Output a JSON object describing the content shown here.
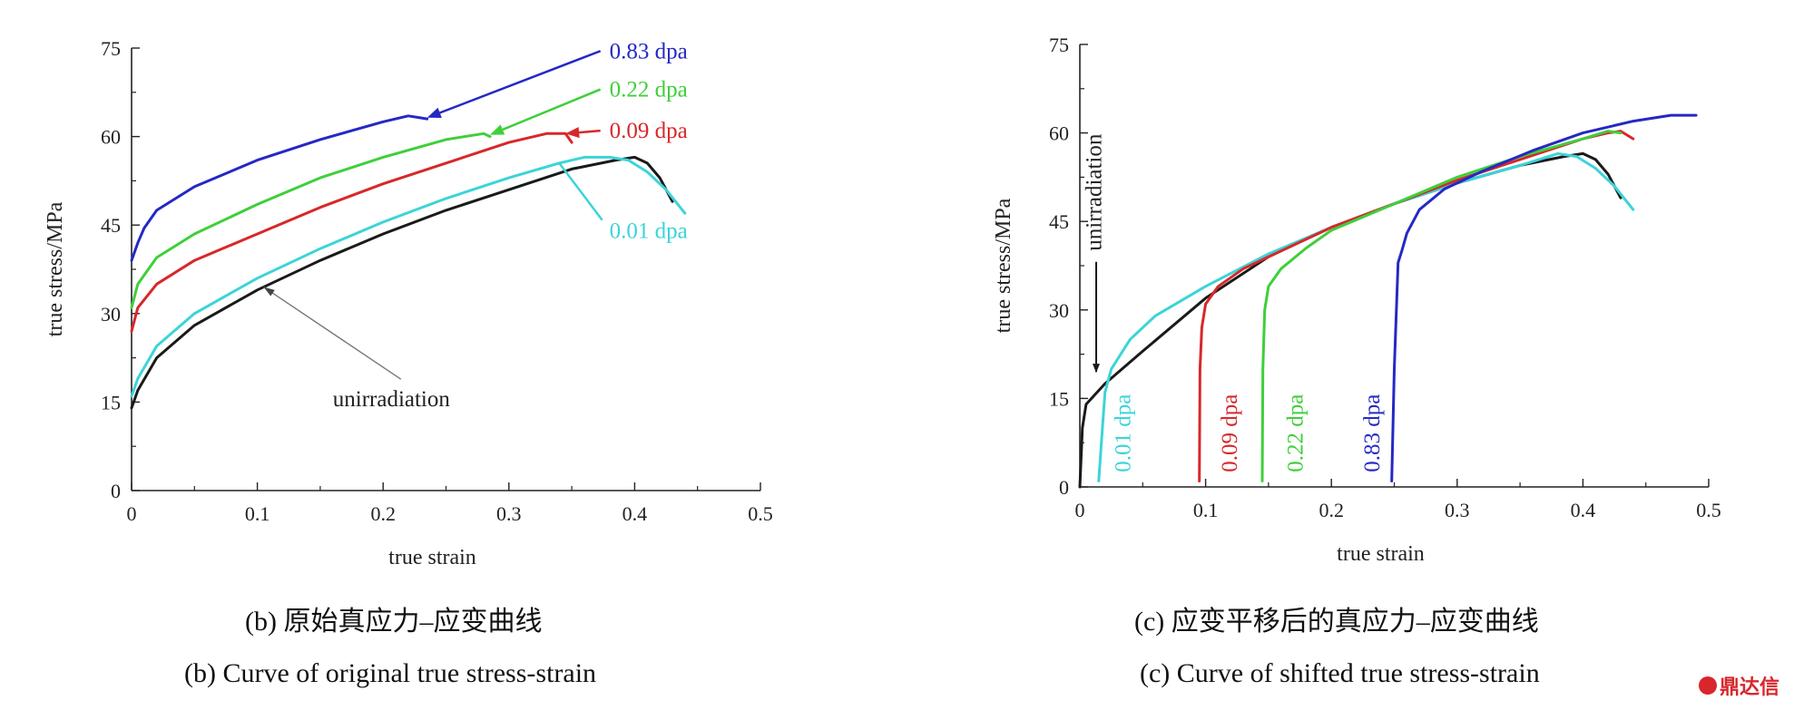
{
  "chart_data": [
    {
      "type": "line",
      "panel": "b",
      "title": "",
      "xlabel": "true strain",
      "ylabel": "true stress/MPa",
      "xlim": [
        0,
        0.5
      ],
      "ylim": [
        0,
        75
      ],
      "xticks": [
        "0",
        "0.1",
        "0.2",
        "0.3",
        "0.4",
        "0.5"
      ],
      "yticks": [
        "0",
        "15",
        "30",
        "45",
        "60",
        "75"
      ],
      "grid": false,
      "legend": "none",
      "series": [
        {
          "name": "unirradiation",
          "color": "#1a1a1a",
          "x": [
            0,
            0.005,
            0.02,
            0.05,
            0.1,
            0.15,
            0.2,
            0.25,
            0.3,
            0.35,
            0.385,
            0.4,
            0.41,
            0.42,
            0.43
          ],
          "y": [
            14,
            17,
            22.5,
            28,
            34,
            39,
            43.5,
            47.5,
            51,
            54.5,
            56,
            56.5,
            55.5,
            53,
            49
          ]
        },
        {
          "name": "0.01 dpa",
          "color": "#3cd4d8",
          "x": [
            0,
            0.005,
            0.02,
            0.05,
            0.1,
            0.15,
            0.2,
            0.25,
            0.3,
            0.34,
            0.36,
            0.38,
            0.395,
            0.41,
            0.425,
            0.44
          ],
          "y": [
            16,
            19,
            24.5,
            30,
            36,
            41,
            45.5,
            49.5,
            53,
            55.5,
            56.5,
            56.5,
            56,
            54,
            51,
            47
          ]
        },
        {
          "name": "0.09 dpa",
          "color": "#d7282a",
          "x": [
            0,
            0.005,
            0.02,
            0.05,
            0.1,
            0.15,
            0.2,
            0.25,
            0.3,
            0.33,
            0.345,
            0.35
          ],
          "y": [
            27,
            31,
            35,
            39,
            43.5,
            48,
            52,
            55.5,
            59,
            60.5,
            60.5,
            59
          ]
        },
        {
          "name": "0.22 dpa",
          "color": "#3fcf3a",
          "x": [
            0,
            0.005,
            0.02,
            0.05,
            0.1,
            0.15,
            0.2,
            0.25,
            0.28,
            0.285
          ],
          "y": [
            31,
            35,
            39.5,
            43.5,
            48.5,
            53,
            56.5,
            59.5,
            60.5,
            60
          ]
        },
        {
          "name": "0.83 dpa",
          "color": "#2528c4",
          "x": [
            0,
            0.005,
            0.01,
            0.02,
            0.05,
            0.1,
            0.15,
            0.2,
            0.22,
            0.235
          ],
          "y": [
            39,
            42,
            44.5,
            47.5,
            51.5,
            56,
            59.5,
            62.5,
            63.5,
            63
          ]
        }
      ],
      "annotations": [
        {
          "text": "0.83 dpa",
          "series": "0.83 dpa",
          "label_x": 0.38,
          "label_y": 74.5,
          "point_x": 0.235,
          "point_y": 63.2
        },
        {
          "text": "0.22 dpa",
          "series": "0.22 dpa",
          "label_x": 0.38,
          "label_y": 68,
          "point_x": 0.285,
          "point_y": 60.3
        },
        {
          "text": "0.09 dpa",
          "series": "0.09 dpa",
          "label_x": 0.38,
          "label_y": 61,
          "point_x": 0.345,
          "point_y": 60.5
        },
        {
          "text": "0.01 dpa",
          "series": "0.01 dpa",
          "label_x": 0.38,
          "label_y": 44,
          "point_x": 0.34,
          "point_y": 55.5
        },
        {
          "text": "unirradiation",
          "series": "unirradiation",
          "label_x": 0.16,
          "label_y": 15.5,
          "point_x": 0.105,
          "point_y": 34.5
        }
      ]
    },
    {
      "type": "line",
      "panel": "c",
      "title": "",
      "xlabel": "true strain",
      "ylabel": "true stress/MPa",
      "xlim": [
        0,
        0.5
      ],
      "ylim": [
        0,
        75
      ],
      "xticks": [
        "0",
        "0.1",
        "0.2",
        "0.3",
        "0.4",
        "0.5"
      ],
      "yticks": [
        "0",
        "15",
        "30",
        "45",
        "60",
        "75"
      ],
      "grid": false,
      "legend": "none",
      "series": [
        {
          "name": "unirradiation",
          "color": "#1a1a1a",
          "x": [
            0,
            0.002,
            0.005,
            0.02,
            0.05,
            0.1,
            0.15,
            0.2,
            0.25,
            0.3,
            0.35,
            0.385,
            0.4,
            0.41,
            0.42,
            0.43
          ],
          "y": [
            0,
            10,
            14,
            17.5,
            23,
            32,
            39,
            44,
            48,
            51.5,
            54.5,
            56,
            56.5,
            55.5,
            53,
            49
          ]
        },
        {
          "name": "0.01 dpa",
          "color": "#3cd4d8",
          "x": [
            0.015,
            0.018,
            0.02,
            0.025,
            0.04,
            0.06,
            0.1,
            0.15,
            0.2,
            0.25,
            0.3,
            0.35,
            0.38,
            0.395,
            0.41,
            0.425,
            0.44
          ],
          "y": [
            1,
            10,
            16,
            20,
            25,
            29,
            34,
            39.5,
            44,
            48,
            51.5,
            54.5,
            56.5,
            56,
            54,
            51,
            47
          ]
        },
        {
          "name": "0.09 dpa",
          "color": "#d7282a",
          "x": [
            0.095,
            0.0955,
            0.097,
            0.1,
            0.11,
            0.13,
            0.16,
            0.2,
            0.25,
            0.3,
            0.35,
            0.4,
            0.42,
            0.43,
            0.44
          ],
          "y": [
            1,
            20,
            27,
            31,
            34,
            37,
            40,
            44,
            48,
            52,
            55.5,
            59,
            60,
            60.3,
            59
          ]
        },
        {
          "name": "0.22 dpa",
          "color": "#3fcf3a",
          "x": [
            0.145,
            0.1455,
            0.147,
            0.15,
            0.16,
            0.18,
            0.2,
            0.25,
            0.3,
            0.35,
            0.4,
            0.42,
            0.43
          ],
          "y": [
            1,
            20,
            30,
            34,
            37,
            40.5,
            43.5,
            48,
            52.5,
            56,
            59,
            60.3,
            60
          ]
        },
        {
          "name": "0.83 dpa",
          "color": "#2528c4",
          "x": [
            0.248,
            0.25,
            0.253,
            0.256,
            0.26,
            0.27,
            0.29,
            0.32,
            0.36,
            0.4,
            0.44,
            0.47,
            0.49
          ],
          "y": [
            1,
            20,
            38,
            40,
            43,
            47,
            50.5,
            53.5,
            57,
            60,
            62,
            63,
            63
          ]
        }
      ],
      "annotations": [
        {
          "text": "unirradiation",
          "series": "unirradiation",
          "orientation": "vertical",
          "label_x": 0.017,
          "label_y": 40,
          "point_x": 0.013,
          "point_y": 19.5
        },
        {
          "text": "0.01 dpa",
          "series": "0.01 dpa",
          "orientation": "vertical",
          "label_x": 0.04,
          "label_y": 2.5
        },
        {
          "text": "0.09 dpa",
          "series": "0.09 dpa",
          "orientation": "vertical",
          "label_x": 0.125,
          "label_y": 2.5
        },
        {
          "text": "0.22 dpa",
          "series": "0.22 dpa",
          "orientation": "vertical",
          "label_x": 0.177,
          "label_y": 2.5
        },
        {
          "text": "0.83 dpa",
          "series": "0.83 dpa",
          "orientation": "vertical",
          "label_x": 0.238,
          "label_y": 2.5
        }
      ]
    }
  ],
  "captions": {
    "b_zh": "(b) 原始真应力–应变曲线",
    "b_en": "(b) Curve of original true stress-strain",
    "c_zh": "(c) 应变平移后的真应力–应变曲线",
    "c_en": "(c) Curve of shifted true stress-strain"
  },
  "watermark": {
    "text": "鼎达信",
    "icon": "logo-circle-icon"
  }
}
